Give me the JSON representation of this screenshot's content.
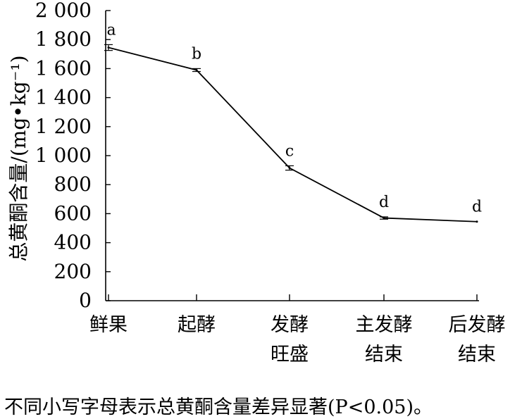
{
  "chart_data": {
    "type": "line",
    "categories": [
      [
        "鲜果"
      ],
      [
        "起酵"
      ],
      [
        "发酵",
        "旺盛"
      ],
      [
        "主发酵",
        "结束"
      ],
      [
        "后发酵",
        "结束"
      ]
    ],
    "values": [
      1745,
      1590,
      915,
      570,
      545
    ],
    "error": [
      20,
      10,
      15,
      8,
      0
    ],
    "significance": [
      "a",
      "b",
      "c",
      "d",
      "d"
    ],
    "ylabel": "总黄酮含量/(mg•kg⁻¹)",
    "ylim": [
      0,
      2000
    ],
    "yticks": [
      0,
      200,
      400,
      600,
      800,
      1000,
      1200,
      1400,
      1600,
      1800,
      2000
    ],
    "ytick_labels": [
      "0",
      "200",
      "400",
      "600",
      "800",
      "1 000",
      "1 200",
      "1 400",
      "1 600",
      "1 800",
      "2 000"
    ],
    "grid": false,
    "line_color": "#000000"
  },
  "footnote": "不同小写字母表示总黄酮含量差异显著(P<0.05)。"
}
